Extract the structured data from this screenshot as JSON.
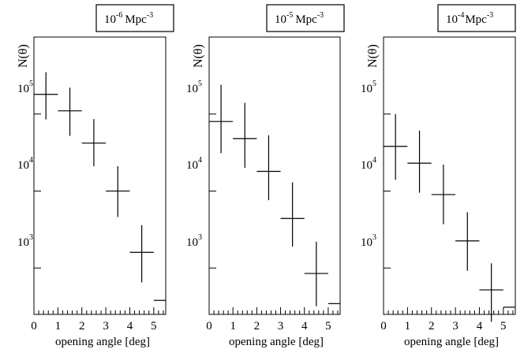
{
  "chart_data": [
    {
      "type": "scatter",
      "title": "10^{-6} Mpc^{-3}",
      "title_base": "10",
      "title_exp": "-6",
      "title_unit": "Mpc",
      "title_unit_exp": "-3",
      "xlabel": "opening angle [deg]",
      "ylabel": "N(θ)",
      "xlim": [
        0,
        5.5
      ],
      "ylim": [
        250,
        1000000
      ],
      "yscale": "log",
      "x_ticks": [
        "0",
        "1",
        "2",
        "3",
        "4",
        "5"
      ],
      "y_ticks": [
        {
          "value": 1000,
          "base": "10",
          "exp": "3"
        },
        {
          "value": 10000,
          "base": "10",
          "exp": "4"
        },
        {
          "value": 100000,
          "base": "10",
          "exp": "5"
        }
      ],
      "points": [
        {
          "x": 0.5,
          "y": 180000,
          "ylow": 85000,
          "yhigh": 350000
        },
        {
          "x": 1.5,
          "y": 110000,
          "ylow": 52000,
          "yhigh": 220000
        },
        {
          "x": 2.5,
          "y": 42000,
          "ylow": 21000,
          "yhigh": 86000
        },
        {
          "x": 3.5,
          "y": 10000,
          "ylow": 4600,
          "yhigh": 21000
        },
        {
          "x": 4.5,
          "y": 1600,
          "ylow": 650,
          "yhigh": 3600
        },
        {
          "x": 5.5,
          "y": 380
        }
      ]
    },
    {
      "type": "scatter",
      "title": "10^{-5} Mpc^{-3}",
      "title_base": "10",
      "title_exp": "-5",
      "title_unit": "Mpc",
      "title_unit_exp": "-3",
      "xlabel": "opening angle [deg]",
      "ylabel": "N(θ)",
      "xlim": [
        0,
        5.5
      ],
      "ylim": [
        250,
        1000000
      ],
      "yscale": "log",
      "x_ticks": [
        "0",
        "1",
        "2",
        "3",
        "4",
        "5"
      ],
      "y_ticks": [
        {
          "value": 1000,
          "base": "10",
          "exp": "3"
        },
        {
          "value": 10000,
          "base": "10",
          "exp": "4"
        },
        {
          "value": 100000,
          "base": "10",
          "exp": "5"
        }
      ],
      "points": [
        {
          "x": 0.5,
          "y": 80000,
          "ylow": 31000,
          "yhigh": 240000
        },
        {
          "x": 1.5,
          "y": 48000,
          "ylow": 20000,
          "yhigh": 140000
        },
        {
          "x": 2.5,
          "y": 18000,
          "ylow": 7600,
          "yhigh": 53000
        },
        {
          "x": 3.5,
          "y": 4400,
          "ylow": 1900,
          "yhigh": 13000
        },
        {
          "x": 4.5,
          "y": 850,
          "ylow": 320,
          "yhigh": 2200
        },
        {
          "x": 5.5,
          "y": 345
        }
      ]
    },
    {
      "type": "scatter",
      "title": "10^{-4} Mpc^{-3}",
      "title_base": "10",
      "title_exp": "-4",
      "title_unit": "Mpc",
      "title_unit_exp": "-3",
      "xlabel": "opening angle [deg]",
      "ylabel": "N(θ)",
      "xlim": [
        0,
        5.5
      ],
      "ylim": [
        250,
        1000000
      ],
      "yscale": "log",
      "x_ticks": [
        "0",
        "1",
        "2",
        "3",
        "4",
        "5"
      ],
      "y_ticks": [
        {
          "value": 1000,
          "base": "10",
          "exp": "3"
        },
        {
          "value": 10000,
          "base": "10",
          "exp": "4"
        },
        {
          "value": 100000,
          "base": "10",
          "exp": "5"
        }
      ],
      "points": [
        {
          "x": 0.5,
          "y": 38000,
          "ylow": 14000,
          "yhigh": 100000
        },
        {
          "x": 1.5,
          "y": 23000,
          "ylow": 9500,
          "yhigh": 61000
        },
        {
          "x": 2.5,
          "y": 9000,
          "ylow": 3700,
          "yhigh": 22000
        },
        {
          "x": 3.5,
          "y": 2250,
          "ylow": 920,
          "yhigh": 5300
        },
        {
          "x": 4.5,
          "y": 520,
          "ylow": 200,
          "yhigh": 1150
        },
        {
          "x": 5.5,
          "y": 310
        }
      ]
    }
  ]
}
